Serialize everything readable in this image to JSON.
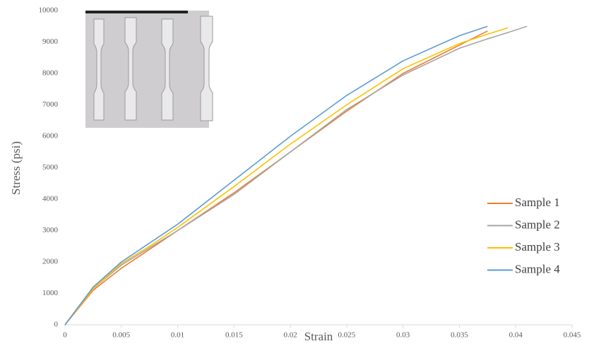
{
  "chart_data": {
    "type": "line",
    "x_label": "Strain",
    "y_label": "Stress (psi)",
    "x": [
      0,
      0.0025,
      0.005,
      0.0075,
      0.01,
      0.015,
      0.02,
      0.025,
      0.03,
      0.035,
      0.0375,
      0.0393,
      0.041
    ],
    "series": [
      {
        "name": "Sample 1",
        "color": "#ed7d31",
        "values": [
          0,
          1100,
          1800,
          2400,
          3000,
          4200,
          5500,
          6800,
          8000,
          8900,
          9350,
          null,
          null
        ]
      },
      {
        "name": "Sample 2",
        "color": "#a5a5a5",
        "values": [
          0,
          1150,
          1900,
          2450,
          3000,
          4150,
          5500,
          6850,
          7950,
          8800,
          9100,
          9300,
          9500
        ]
      },
      {
        "name": "Sample 3",
        "color": "#ffc000",
        "values": [
          0,
          1150,
          1950,
          2500,
          3100,
          4400,
          5750,
          7000,
          8150,
          8950,
          9250,
          9450,
          null
        ]
      },
      {
        "name": "Sample 4",
        "color": "#5b9bd5",
        "values": [
          0,
          1200,
          2000,
          2600,
          3200,
          4600,
          6000,
          7300,
          8400,
          9200,
          9500,
          null,
          null
        ]
      }
    ],
    "xlim": [
      0,
      0.045
    ],
    "xticks": [
      0,
      0.005,
      0.01,
      0.015,
      0.02,
      0.025,
      0.03,
      0.035,
      0.04,
      0.045
    ],
    "ylim": [
      0,
      10000
    ],
    "yticks": [
      0,
      1000,
      2000,
      3000,
      4000,
      5000,
      6000,
      7000,
      8000,
      9000,
      10000
    ],
    "grid": false,
    "legend": "right"
  }
}
